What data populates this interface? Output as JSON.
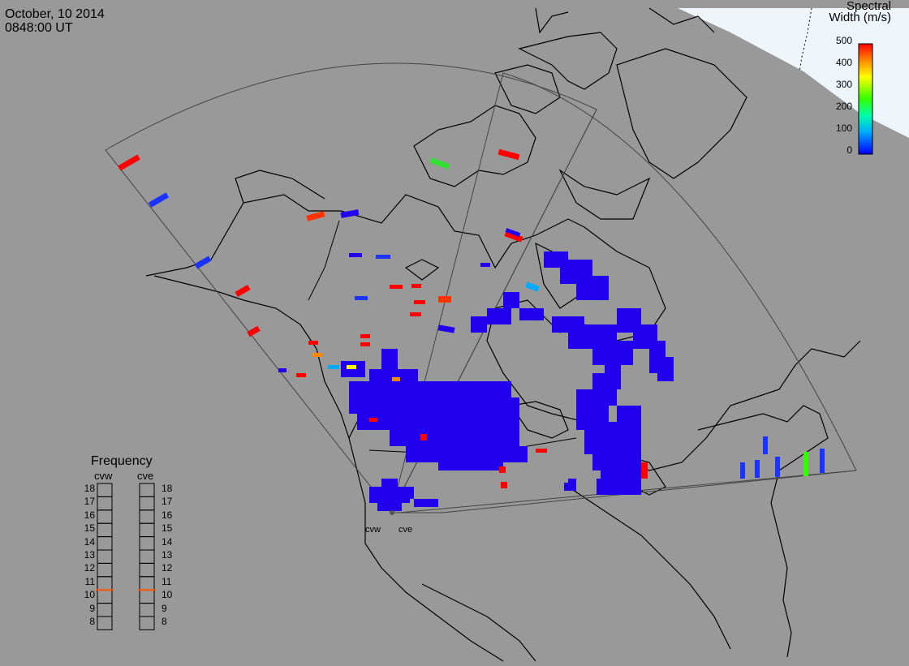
{
  "header": {
    "date": "October, 10 2014",
    "time": "0848:00 UT"
  },
  "colorbar": {
    "title_line1": "Spectral",
    "title_line2": "Width (m/s)",
    "ticks": [
      "500",
      "400",
      "300",
      "200",
      "100",
      "0"
    ],
    "range": [
      0,
      500
    ],
    "colors": [
      "#0000ff",
      "#00aaff",
      "#00ffaa",
      "#33ff00",
      "#ffff00",
      "#ff8800",
      "#ff0000"
    ]
  },
  "frequency_legend": {
    "title": "Frequency",
    "radars": [
      {
        "name": "cvw",
        "frequency": 10.5
      },
      {
        "name": "cve",
        "frequency": 10.5
      }
    ],
    "levels": [
      "18",
      "17",
      "16",
      "15",
      "14",
      "13",
      "12",
      "11",
      "10",
      "9",
      "8"
    ],
    "marker_color": "#ff5500"
  },
  "sites": [
    {
      "label": "cvw"
    },
    {
      "label": "cve"
    }
  ],
  "colors": {
    "background": "#999999",
    "land_outline": "#000000",
    "fov_outline": "#444444",
    "nightside_fill": "#eef6fb",
    "scatter_primary": "#2200ee"
  }
}
